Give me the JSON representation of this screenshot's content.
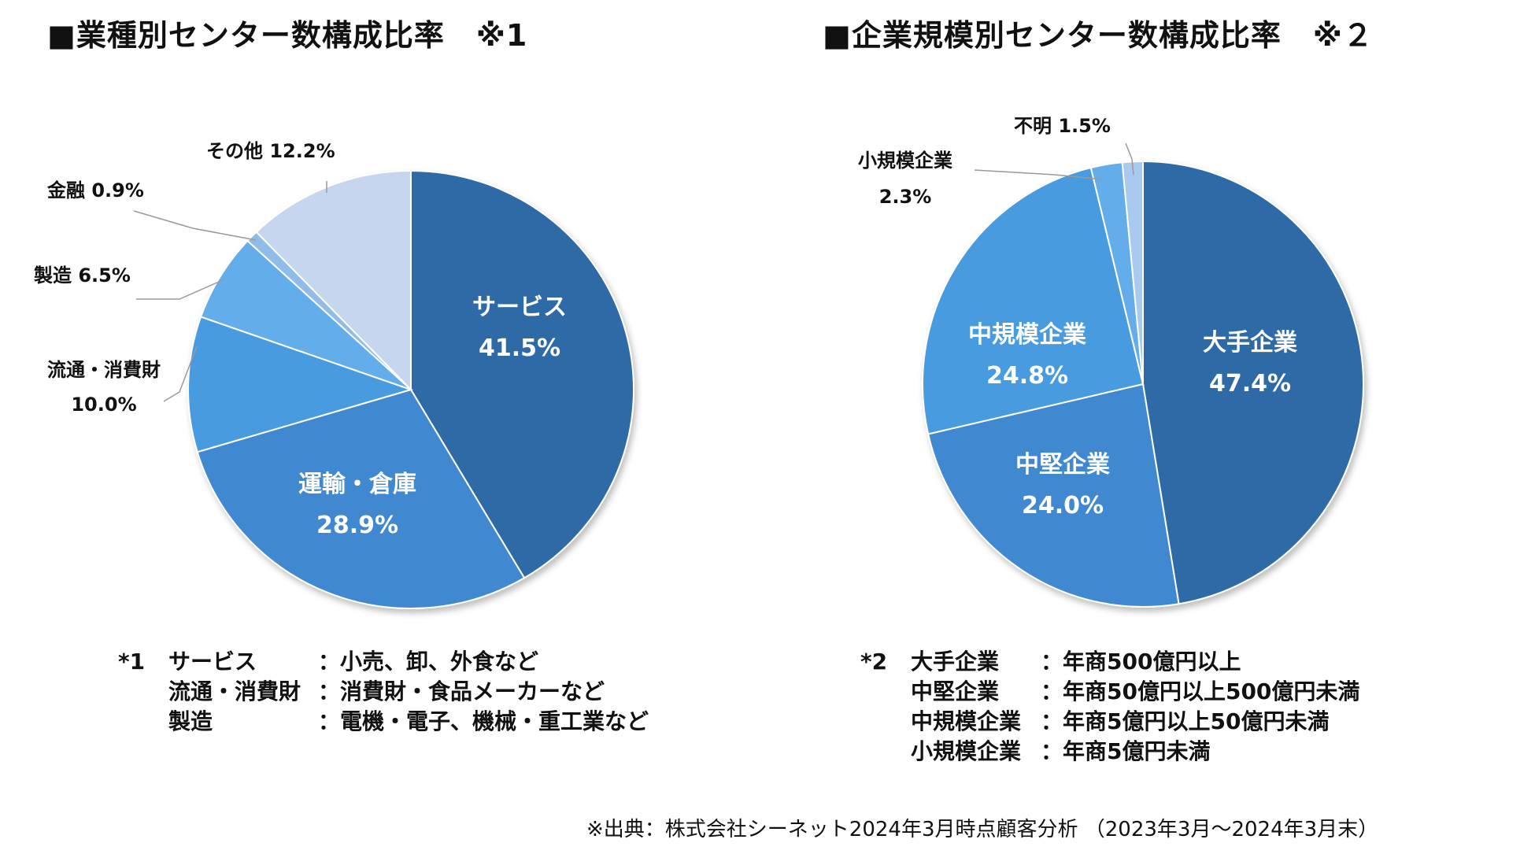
{
  "colors": {
    "dark_blue": "#2f6aa6",
    "mid_blue": "#3f88cf",
    "light_blue": "#63aeea",
    "pale_blue": "#c6d6ef",
    "text_dark": "#111111",
    "text_light": "#ffffff"
  },
  "title1": {
    "text": "■業種別センター数構成比率",
    "note": "※1"
  },
  "title2": {
    "text": "■企業規模別センター数構成比率",
    "note": "※２"
  },
  "chart_data": [
    {
      "type": "pie",
      "title": "■業種別センター数構成比率",
      "slices": [
        {
          "label": "サービス",
          "value": 41.5,
          "display": "41.5%",
          "color": "#2f6aa6",
          "label_pos": "inside"
        },
        {
          "label": "運輸・倉庫",
          "value": 28.9,
          "display": "28.9%",
          "color": "#3f88cf",
          "label_pos": "inside"
        },
        {
          "label": "流通・消費財",
          "value": 10.0,
          "display": "10.0%",
          "color": "#4a9be0",
          "label_pos": "outside"
        },
        {
          "label": "製造",
          "value": 6.5,
          "display": "6.5%",
          "color": "#63aeea",
          "label_pos": "outside"
        },
        {
          "label": "金融",
          "value": 0.9,
          "display": "0.9%",
          "color": "#8fbce8",
          "label_pos": "outside"
        },
        {
          "label": "その他",
          "value": 12.2,
          "display": "12.2%",
          "color": "#c6d6ef",
          "label_pos": "outside"
        }
      ]
    },
    {
      "type": "pie",
      "title": "■企業規模別センター数構成比率",
      "slices": [
        {
          "label": "大手企業",
          "value": 47.4,
          "display": "47.4%",
          "color": "#2f6aa6",
          "label_pos": "inside"
        },
        {
          "label": "中堅企業",
          "value": 24.0,
          "display": "24.0%",
          "color": "#3f88cf",
          "label_pos": "inside"
        },
        {
          "label": "中規模企業",
          "value": 24.8,
          "display": "24.8%",
          "color": "#4a9be0",
          "label_pos": "inside"
        },
        {
          "label": "小規模企業",
          "value": 2.3,
          "display": "2.3%",
          "color": "#63aeea",
          "label_pos": "outside"
        },
        {
          "label": "不明",
          "value": 1.5,
          "display": "1.5%",
          "color": "#a9c9ef",
          "label_pos": "outside"
        }
      ]
    }
  ],
  "footnote1": {
    "mark": "*1",
    "rows": [
      {
        "key": "サービス",
        "val": "：小売、卸、外食など"
      },
      {
        "key": "流通・消費財",
        "val": "：消費財・食品メーカーなど"
      },
      {
        "key": "製造",
        "val": "：電機・電子、機械・重工業など"
      }
    ]
  },
  "footnote2": {
    "mark": "*2",
    "rows": [
      {
        "key": "大手企業",
        "val": "：年商500億円以上"
      },
      {
        "key": "中堅企業",
        "val": "：年商50億円以上500億円未満"
      },
      {
        "key": "中規模企業",
        "val": "：年商5億円以上50億円未満"
      },
      {
        "key": "小規模企業",
        "val": "：年商5億円未満"
      }
    ]
  },
  "source": "※出典：株式会社シーネット2024年3月時点顧客分析 （2023年3月～2024年3月末）"
}
